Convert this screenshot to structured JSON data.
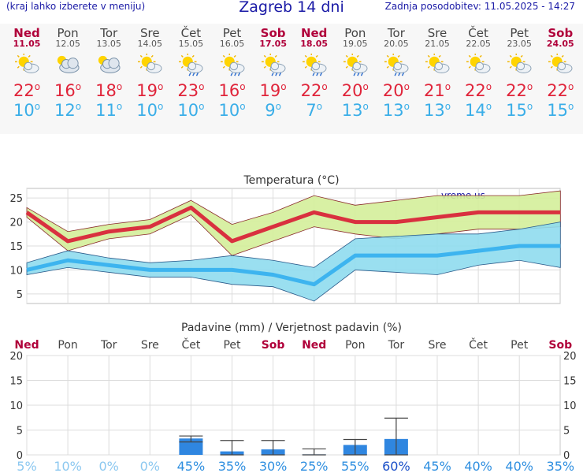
{
  "header": {
    "hint": "(kraj lahko izberete v meniju)",
    "title": "Zagreb 14 dni",
    "updated": "Zadnja posodobitev: 11.05.2025 - 14:27"
  },
  "colors": {
    "max": "#d9303f",
    "min": "#3db4ef",
    "max_band": "#d4ee9a",
    "min_band": "#8fdbee",
    "bar": "#2f86e0"
  },
  "days": [
    {
      "name": "Ned",
      "date": "11.05",
      "icon": "sun-cloud-icon",
      "max": "22",
      "min": "10",
      "weekend": true
    },
    {
      "name": "Pon",
      "date": "12.05",
      "icon": "cloud-sun-icon",
      "max": "16",
      "min": "12",
      "weekend": false
    },
    {
      "name": "Tor",
      "date": "13.05",
      "icon": "cloud-sun-icon",
      "max": "18",
      "min": "11",
      "weekend": false
    },
    {
      "name": "Sre",
      "date": "14.05",
      "icon": "sun-cloud-icon",
      "max": "19",
      "min": "10",
      "weekend": false
    },
    {
      "name": "Čet",
      "date": "15.05",
      "icon": "sun-rain-icon",
      "max": "23",
      "min": "10",
      "weekend": false
    },
    {
      "name": "Pet",
      "date": "16.05",
      "icon": "sun-rain-icon",
      "max": "16",
      "min": "10",
      "weekend": false
    },
    {
      "name": "Sob",
      "date": "17.05",
      "icon": "sun-rain-icon",
      "max": "19",
      "min": "9",
      "weekend": true
    },
    {
      "name": "Ned",
      "date": "18.05",
      "icon": "sun-rain-icon",
      "max": "22",
      "min": "7",
      "weekend": true
    },
    {
      "name": "Pon",
      "date": "19.05",
      "icon": "sun-rain-icon",
      "max": "20",
      "min": "13",
      "weekend": false
    },
    {
      "name": "Tor",
      "date": "20.05",
      "icon": "sun-rain-icon",
      "max": "20",
      "min": "13",
      "weekend": false
    },
    {
      "name": "Sre",
      "date": "21.05",
      "icon": "sun-cloud-icon",
      "max": "21",
      "min": "13",
      "weekend": false
    },
    {
      "name": "Čet",
      "date": "22.05",
      "icon": "sun-cloud-icon",
      "max": "22",
      "min": "14",
      "weekend": false
    },
    {
      "name": "Pet",
      "date": "23.05",
      "icon": "sun-cloud-icon",
      "max": "22",
      "min": "15",
      "weekend": false
    },
    {
      "name": "Sob",
      "date": "24.05",
      "icon": "sun-cloud-icon",
      "max": "22",
      "min": "15",
      "weekend": true
    }
  ],
  "chart_data": [
    {
      "type": "line",
      "title": "Temperatura (°C)",
      "watermark": "vreme.us",
      "ylim": [
        3,
        27
      ],
      "yticks": [
        5,
        10,
        15,
        20,
        25
      ],
      "x": [
        "Ned",
        "Pon",
        "Tor",
        "Sre",
        "Čet",
        "Pet",
        "Sob",
        "Ned",
        "Pon",
        "Tor",
        "Sre",
        "Čet",
        "Pet",
        "Sob"
      ],
      "series": [
        {
          "name": "max",
          "values": [
            22,
            16,
            18,
            19,
            23,
            16,
            19,
            22,
            20,
            20,
            21,
            22,
            22,
            22
          ],
          "band_high": [
            23,
            18,
            19.5,
            20.5,
            24.5,
            19.5,
            22,
            25.5,
            23.5,
            24.5,
            25.5,
            25.5,
            25.5,
            26.5
          ],
          "band_low": [
            21,
            14,
            16.5,
            17.5,
            21.5,
            13,
            16,
            19,
            17.5,
            16.5,
            17.5,
            18.5,
            18.5,
            19
          ]
        },
        {
          "name": "min",
          "values": [
            10,
            12,
            11,
            10,
            10,
            10,
            9,
            7,
            13,
            13,
            13,
            14,
            15,
            15
          ],
          "band_high": [
            11.5,
            14,
            12.5,
            11.5,
            12,
            13,
            12,
            10.5,
            16.5,
            17,
            17.5,
            17.5,
            18.5,
            20
          ],
          "band_low": [
            9,
            10.5,
            9.5,
            8.5,
            8.5,
            7,
            6.5,
            3.5,
            10,
            9.5,
            9,
            11,
            12,
            10.5
          ]
        }
      ],
      "grid": true
    },
    {
      "type": "bar",
      "title": "Padavine (mm) / Verjetnost padavin (%)",
      "ylim": [
        0,
        20
      ],
      "yticks": [
        0,
        5,
        10,
        15,
        20
      ],
      "categories": [
        "Ned",
        "Pon",
        "Tor",
        "Sre",
        "Čet",
        "Pet",
        "Sob",
        "Ned",
        "Pon",
        "Tor",
        "Sre",
        "Čet",
        "Pet",
        "Sob"
      ],
      "values": [
        0,
        0,
        0,
        0,
        3.3,
        0.7,
        1.1,
        0.1,
        2.0,
        3.2,
        0,
        0,
        0,
        0
      ],
      "err_low": [
        0,
        0,
        0,
        0,
        2.6,
        0.0,
        0.0,
        0.0,
        0.0,
        0.0,
        0,
        0,
        0,
        0
      ],
      "err_high": [
        0,
        0,
        0,
        0,
        3.8,
        2.9,
        2.9,
        1.2,
        3.1,
        7.4,
        0,
        0,
        0,
        0
      ],
      "probability": [
        "5%",
        "10%",
        "0%",
        "0%",
        "45%",
        "35%",
        "30%",
        "25%",
        "55%",
        "60%",
        "45%",
        "40%",
        "40%",
        "35%"
      ],
      "grid": true
    }
  ]
}
